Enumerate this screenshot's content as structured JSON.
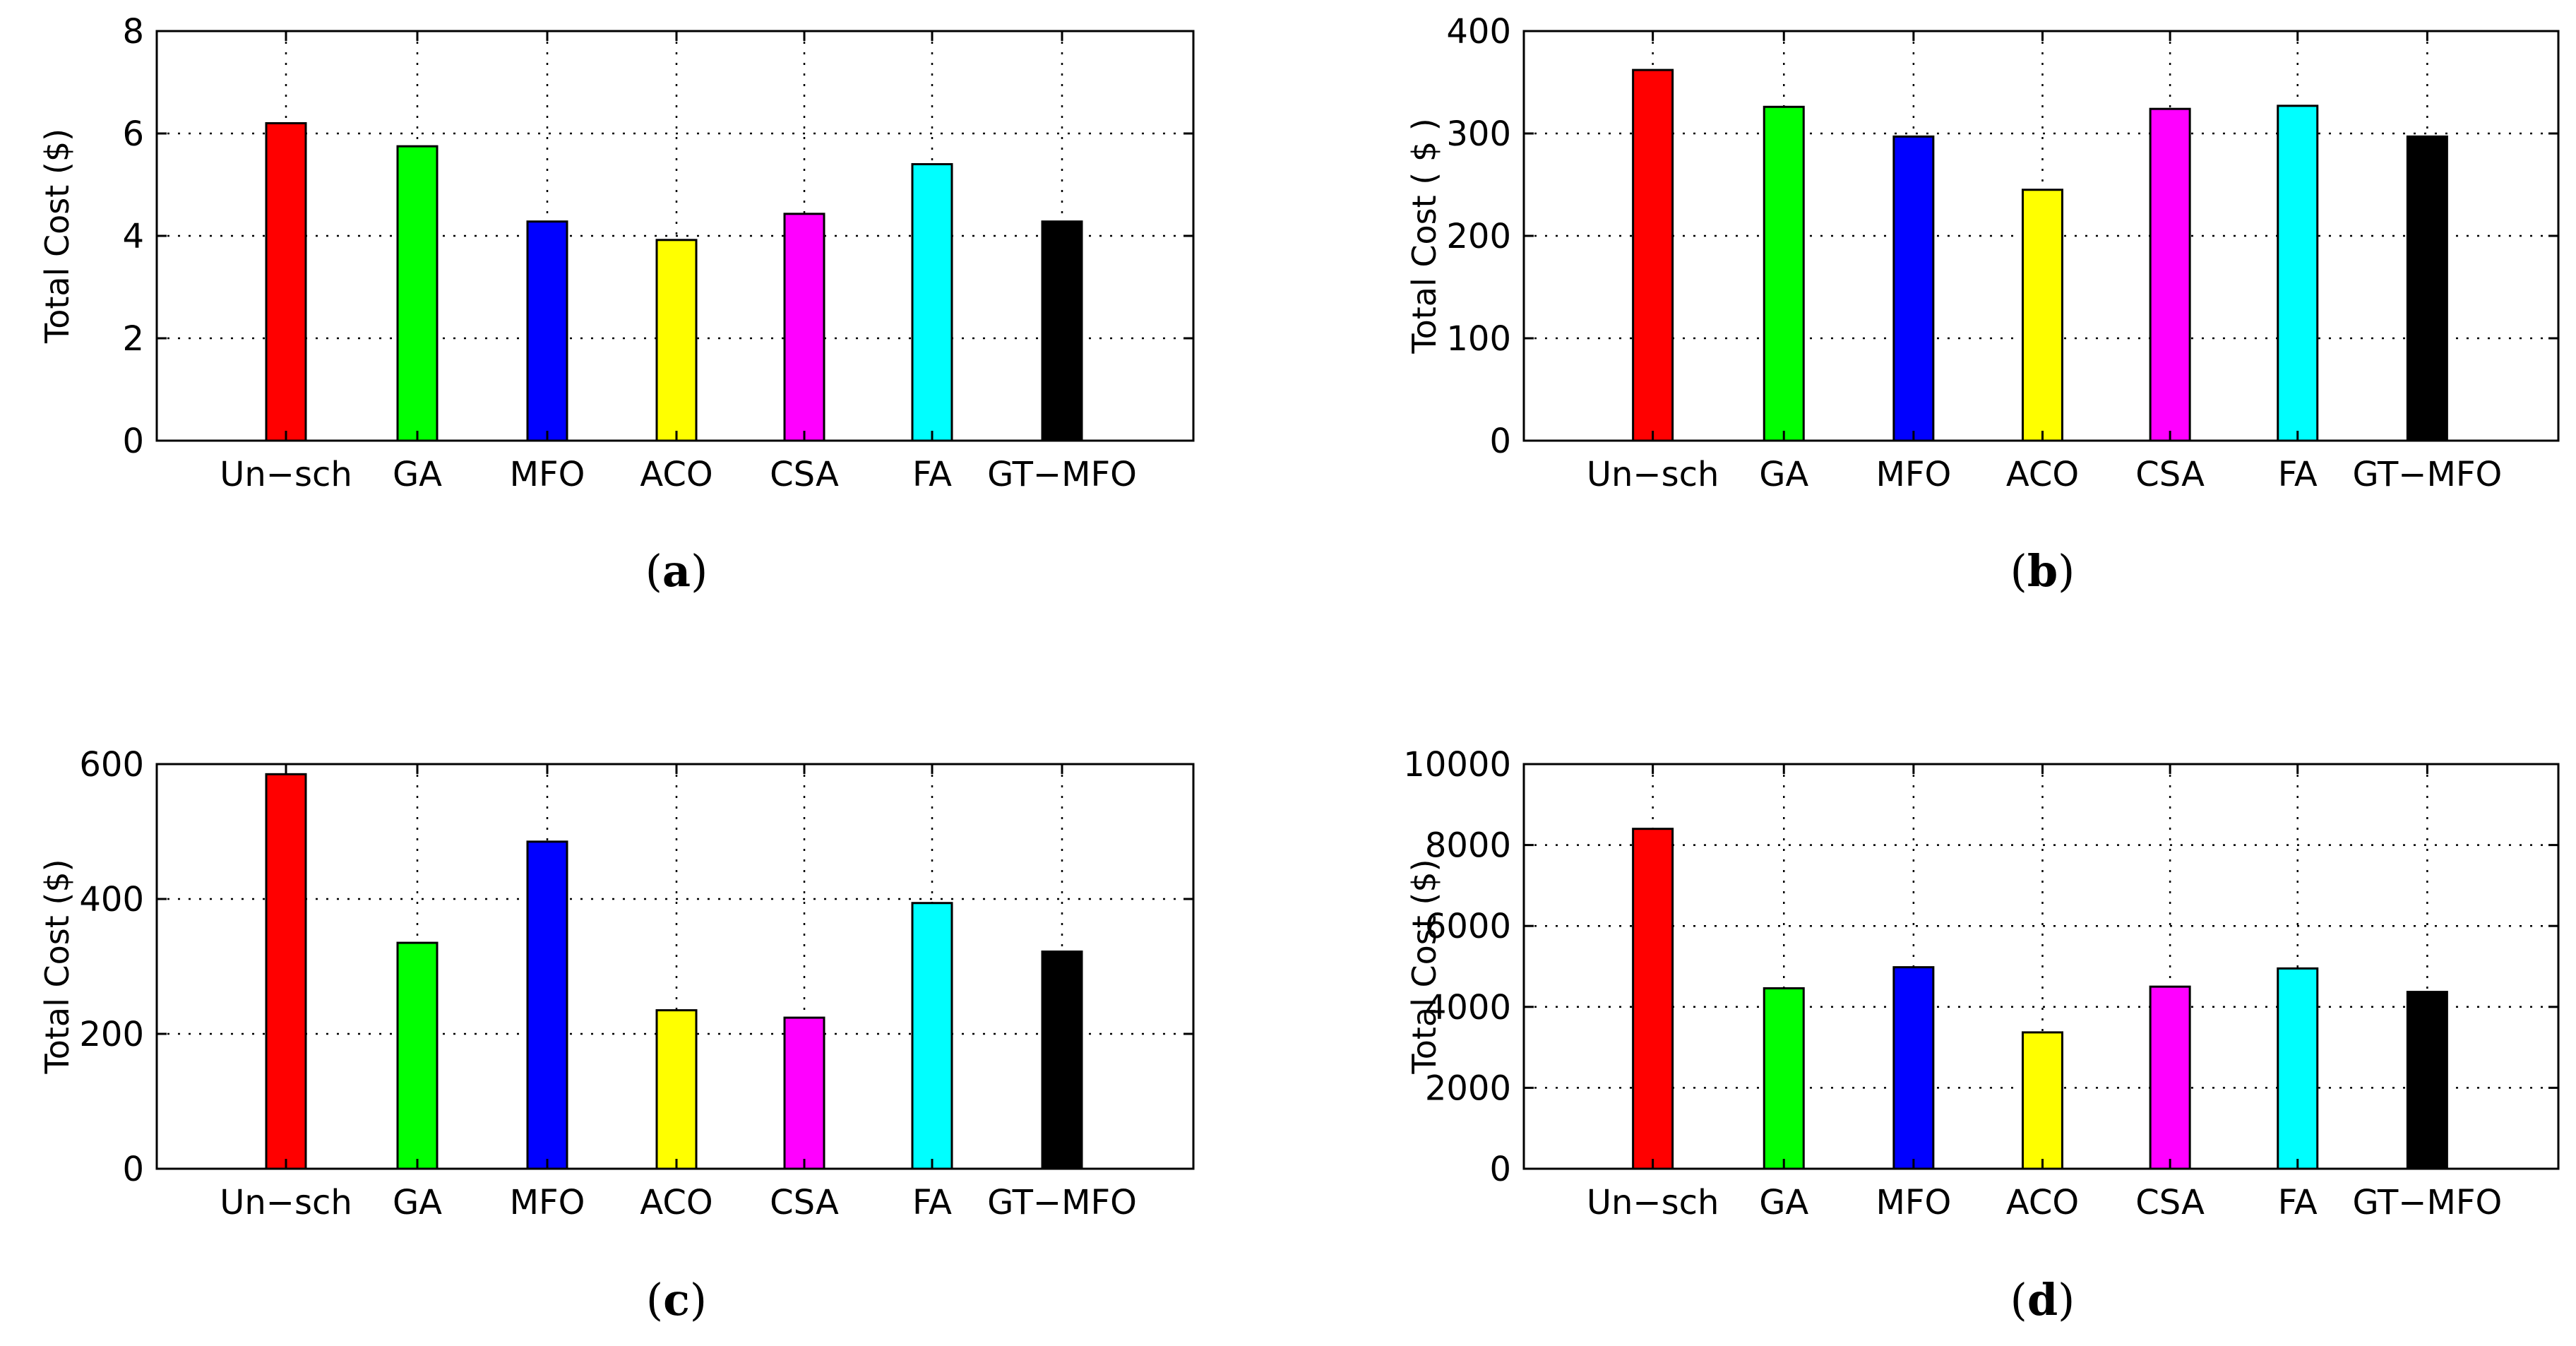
{
  "chart_data": [
    {
      "type": "bar",
      "caption": "a",
      "ylabel": "Total Cost ($)",
      "categories": [
        "Un−sch",
        "GA",
        "MFO",
        "ACO",
        "CSA",
        "FA",
        "GT−MFO"
      ],
      "values": [
        6.2,
        5.75,
        4.28,
        3.92,
        4.43,
        5.4,
        4.28
      ],
      "colors": [
        "#ff0000",
        "#00ff00",
        "#0000ff",
        "#ffff00",
        "#ff00ff",
        "#00ffff",
        "#000000"
      ],
      "ylim": [
        0,
        8
      ],
      "yticks": [
        0,
        2,
        4,
        6,
        8
      ],
      "grid": true
    },
    {
      "type": "bar",
      "caption": "b",
      "ylabel": "Total Cost ( $ )",
      "categories": [
        "Un−sch",
        "GA",
        "MFO",
        "ACO",
        "CSA",
        "FA",
        "GT−MFO"
      ],
      "values": [
        362,
        326,
        297,
        245,
        324,
        327,
        297
      ],
      "colors": [
        "#ff0000",
        "#00ff00",
        "#0000ff",
        "#ffff00",
        "#ff00ff",
        "#00ffff",
        "#000000"
      ],
      "ylim": [
        0,
        400
      ],
      "yticks": [
        0,
        100,
        200,
        300,
        400
      ],
      "grid": true
    },
    {
      "type": "bar",
      "caption": "c",
      "ylabel": "Total Cost ($)",
      "categories": [
        "Un−sch",
        "GA",
        "MFO",
        "ACO",
        "CSA",
        "FA",
        "GT−MFO"
      ],
      "values": [
        585,
        335,
        485,
        235,
        224,
        394,
        322
      ],
      "colors": [
        "#ff0000",
        "#00ff00",
        "#0000ff",
        "#ffff00",
        "#ff00ff",
        "#00ffff",
        "#000000"
      ],
      "ylim": [
        0,
        600
      ],
      "yticks": [
        0,
        200,
        400,
        600
      ],
      "grid": true
    },
    {
      "type": "bar",
      "caption": "d",
      "ylabel": "Total Cost ($)",
      "categories": [
        "Un−sch",
        "GA",
        "MFO",
        "ACO",
        "CSA",
        "FA",
        "GT−MFO"
      ],
      "values": [
        8400,
        4460,
        4980,
        3370,
        4500,
        4950,
        4370
      ],
      "colors": [
        "#ff0000",
        "#00ff00",
        "#0000ff",
        "#ffff00",
        "#ff00ff",
        "#00ffff",
        "#000000"
      ],
      "ylim": [
        0,
        10000
      ],
      "yticks": [
        0,
        2000,
        4000,
        6000,
        8000,
        10000
      ],
      "grid": true
    }
  ]
}
